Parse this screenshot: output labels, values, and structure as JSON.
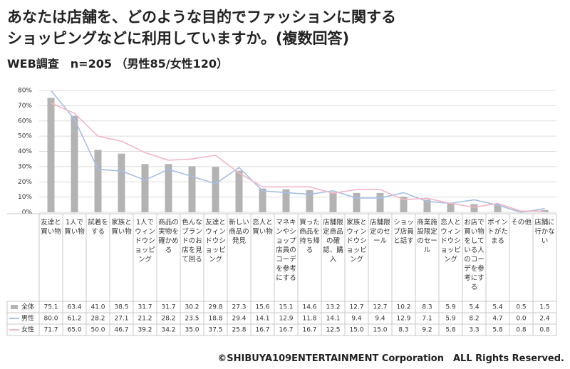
{
  "chart_data": {
    "type": "bar",
    "title": [
      "あなたは店舗を、どのような目的でファッションに関する",
      "ショッピングなどに利用していますか。(複数回答)"
    ],
    "subtitle": "WEB調査　n=205 （男性85/女性120）",
    "footer": "©SHIBUYA109ENTERTAINMENT Corporation　ALL Rights Reserved.",
    "categories": [
      "友達と買い物",
      "1人で買い物",
      "試着をする",
      "家族と買い物",
      "1人でウィンドウショッピング",
      "商品の実物を確かめる",
      "色んなブランドのお店を見て回る",
      "友達とウィンドウショッピング",
      "新しい商品の発見",
      "恋人と買い物",
      "マネキンやショップ店員のコーデを参考にする",
      "買った商品を持ち帰る",
      "店舗限定商品の確認、購入",
      "家族とウィンドウショッピング",
      "店舗限定のセール",
      "ショップ店員と話す",
      "商業施設限定のセール",
      "恋人とウィンドウショッピング",
      "お店で買い物をしている人のコーデを参考にする",
      "ポイントがたまる",
      "その他",
      "店舗に行かない"
    ],
    "series": [
      {
        "name": "全体",
        "type": "bar",
        "color": "#b3b3b3",
        "values": [
          75.1,
          63.4,
          41.0,
          38.5,
          31.7,
          31.7,
          30.2,
          29.8,
          27.3,
          15.6,
          15.1,
          14.6,
          13.2,
          12.7,
          12.7,
          10.2,
          8.3,
          5.9,
          5.4,
          5.4,
          0.5,
          1.5
        ],
        "value_labels": [
          "75.1",
          "63.4",
          "41.0",
          "38.5",
          "31.7",
          "31.7",
          "30.2",
          "29.8",
          "27.3",
          "15.6",
          "15.1",
          "14.6",
          "13.2",
          "12.7",
          "12.7",
          "10.2",
          "8.3",
          "5.9",
          "5.4",
          "5.4",
          "0.5",
          "1.5"
        ]
      },
      {
        "name": "男性",
        "type": "line",
        "color": "#a6bfe6",
        "values": [
          80.0,
          61.2,
          28.2,
          27.1,
          21.2,
          28.2,
          23.5,
          18.8,
          29.4,
          14.1,
          12.9,
          11.8,
          14.1,
          9.4,
          9.4,
          12.9,
          7.1,
          5.9,
          8.2,
          4.7,
          0.0,
          2.4
        ],
        "value_labels": [
          "80.0",
          "61.2",
          "28.2",
          "27.1",
          "21.2",
          "28.2",
          "23.5",
          "18.8",
          "29.4",
          "14.1",
          "12.9",
          "11.8",
          "14.1",
          "9.4",
          "9.4",
          "12.9",
          "7.1",
          "5.9",
          "8.2",
          "4.7",
          "0.0",
          "2.4"
        ]
      },
      {
        "name": "女性",
        "type": "line",
        "color": "#f4b6c6",
        "values": [
          71.7,
          65.0,
          50.0,
          46.7,
          39.2,
          34.2,
          35.0,
          37.5,
          25.8,
          16.7,
          16.7,
          16.7,
          12.5,
          15.0,
          15.0,
          8.3,
          9.2,
          5.8,
          3.3,
          5.8,
          0.8,
          0.8
        ],
        "value_labels": [
          "71.7",
          "65.0",
          "50.0",
          "46.7",
          "39.2",
          "34.2",
          "35.0",
          "37.5",
          "25.8",
          "16.7",
          "16.7",
          "16.7",
          "12.5",
          "15.0",
          "15.0",
          "8.3",
          "9.2",
          "5.8",
          "3.3",
          "5.8",
          "0.8",
          "0.8"
        ]
      }
    ],
    "ylim": [
      0,
      80
    ],
    "yticks": [
      {
        "value": 0,
        "label": "0%"
      },
      {
        "value": 10,
        "label": "10%"
      },
      {
        "value": 20,
        "label": "20%"
      },
      {
        "value": 30,
        "label": "30%"
      },
      {
        "value": 40,
        "label": "40%"
      },
      {
        "value": 50,
        "label": "50%"
      },
      {
        "value": 60,
        "label": "60%"
      },
      {
        "value": 70,
        "label": "70%"
      },
      {
        "value": 80,
        "label": "80%"
      }
    ],
    "grid": true
  }
}
